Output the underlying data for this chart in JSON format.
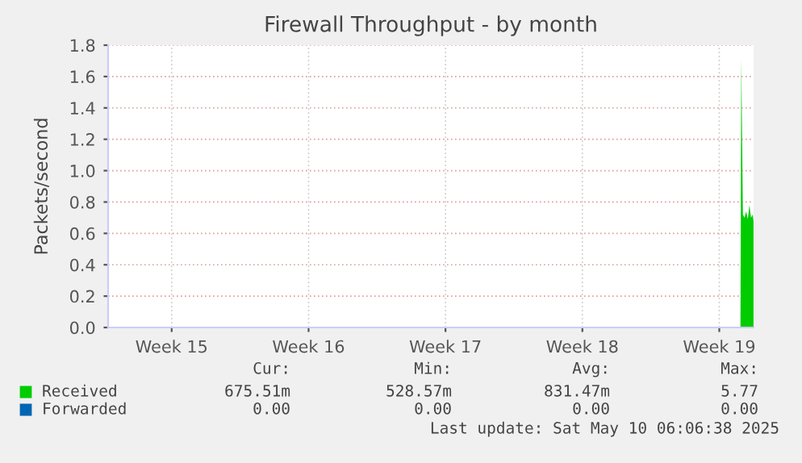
{
  "chart_data": {
    "type": "area",
    "title": "Firewall Throughput - by month",
    "ylabel": "Packets/second",
    "x": [
      "2025-05-09T14:00",
      "2025-05-09T15:00",
      "2025-05-09T17:00",
      "2025-05-09T19:00",
      "2025-05-09T21:00",
      "2025-05-09T23:00",
      "2025-05-10T01:00",
      "2025-05-10T03:00",
      "2025-05-10T05:00",
      "2025-05-10T06:00"
    ],
    "series": [
      {
        "name": "Received",
        "color": "#00cc00",
        "values": [
          0,
          1.71,
          0.72,
          0.7,
          0.74,
          0.69,
          0.78,
          0.7,
          0.72,
          0.68
        ]
      },
      {
        "name": "Forwarded",
        "color": "#0066b3",
        "values": [
          null,
          null,
          null,
          null,
          null,
          null,
          null,
          null,
          null,
          null
        ]
      }
    ],
    "xlim": [
      "2025-04-07T06:00",
      "2025-05-10T06:06"
    ],
    "xticks": [
      {
        "value": "2025-04-10T12:00",
        "label": "Week 15"
      },
      {
        "value": "2025-04-17T12:00",
        "label": "Week 16"
      },
      {
        "value": "2025-04-24T12:00",
        "label": "Week 17"
      },
      {
        "value": "2025-05-01T12:00",
        "label": "Week 18"
      },
      {
        "value": "2025-05-08T12:00",
        "label": "Week 19"
      }
    ],
    "ylim": [
      0,
      1.8
    ],
    "yticks": [
      {
        "value": 0,
        "label": "0.0"
      },
      0.2,
      0.4,
      0.6,
      0.8,
      {
        "value": 1,
        "label": "1.0"
      },
      1.2,
      1.4,
      1.6,
      1.8
    ],
    "grid": true,
    "legend": "bottom",
    "annotations": [
      "Cur:",
      "Min:",
      "Avg:",
      "Max:",
      "675.51m",
      "528.57m",
      "831.47m",
      "5.77",
      "0.00",
      "0.00",
      "0.00",
      "0.00",
      "Last update: Sat May 10 06:06:38 2025"
    ]
  }
}
